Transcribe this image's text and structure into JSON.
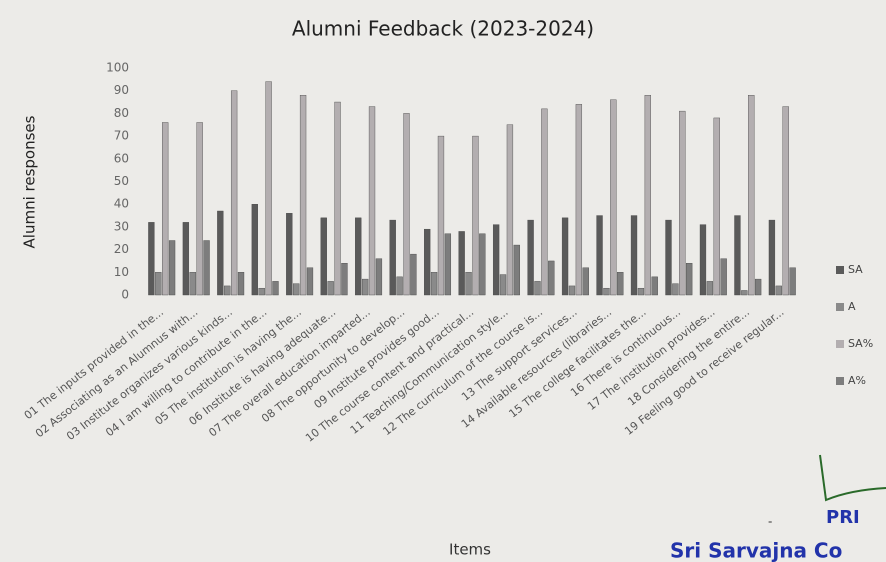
{
  "chart_data": {
    "type": "bar",
    "title": "Alumni Feedback (2023-2024)",
    "y_label": "Alumni responses",
    "x_label": "Items",
    "categories": [
      "01 The inputs provided in the...",
      "02 Associating as an Alumnus with...",
      "03 Institute organizes various kinds...",
      "04 I am willing to contribute in the...",
      "05 The institution is having the...",
      "06 Institute is having adequate...",
      "07 The overall education imparted...",
      "08 The opportunity to develop...",
      "09 Institute provides good...",
      "10 The course content and practical...",
      "11 Teaching/Communication style...",
      "12 The curriculum of the course is...",
      "13 The support services...",
      "14 Available resources (libraries...",
      "15 The college facilitates the...",
      "16 There is continuous...",
      "17 The institution provides...",
      "18 Considering the entire...",
      "19 Feeling good to receive regular..."
    ],
    "series": [
      {
        "name": "SA",
        "color": "#5a5a5a",
        "values": [
          32,
          32,
          37,
          40,
          36,
          34,
          34,
          33,
          29,
          28,
          31,
          33,
          34,
          35,
          35,
          33,
          31,
          35,
          33
        ]
      },
      {
        "name": "A",
        "color": "#8a8a8a",
        "values": [
          10,
          10,
          4,
          3,
          5,
          6,
          7,
          8,
          10,
          10,
          9,
          6,
          4,
          3,
          3,
          5,
          6,
          2,
          4
        ]
      },
      {
        "name": "SA%",
        "color": "#b3aeb0",
        "values": [
          76,
          76,
          90,
          94,
          88,
          85,
          83,
          80,
          70,
          70,
          75,
          82,
          84,
          86,
          88,
          81,
          78,
          88,
          83
        ]
      },
      {
        "name": "A%",
        "color": "#7d7d7d",
        "values": [
          24,
          24,
          10,
          6,
          12,
          14,
          16,
          18,
          27,
          27,
          22,
          15,
          12,
          10,
          8,
          14,
          16,
          7,
          12
        ]
      }
    ],
    "ylim": [
      0,
      100
    ],
    "yticks": [
      0,
      10,
      20,
      30,
      40,
      50,
      60,
      70,
      80,
      90,
      100
    ],
    "grid": false,
    "legend": "right"
  },
  "stamp": [
    "PRI",
    "Sri Sarvajna Co",
    "-"
  ]
}
